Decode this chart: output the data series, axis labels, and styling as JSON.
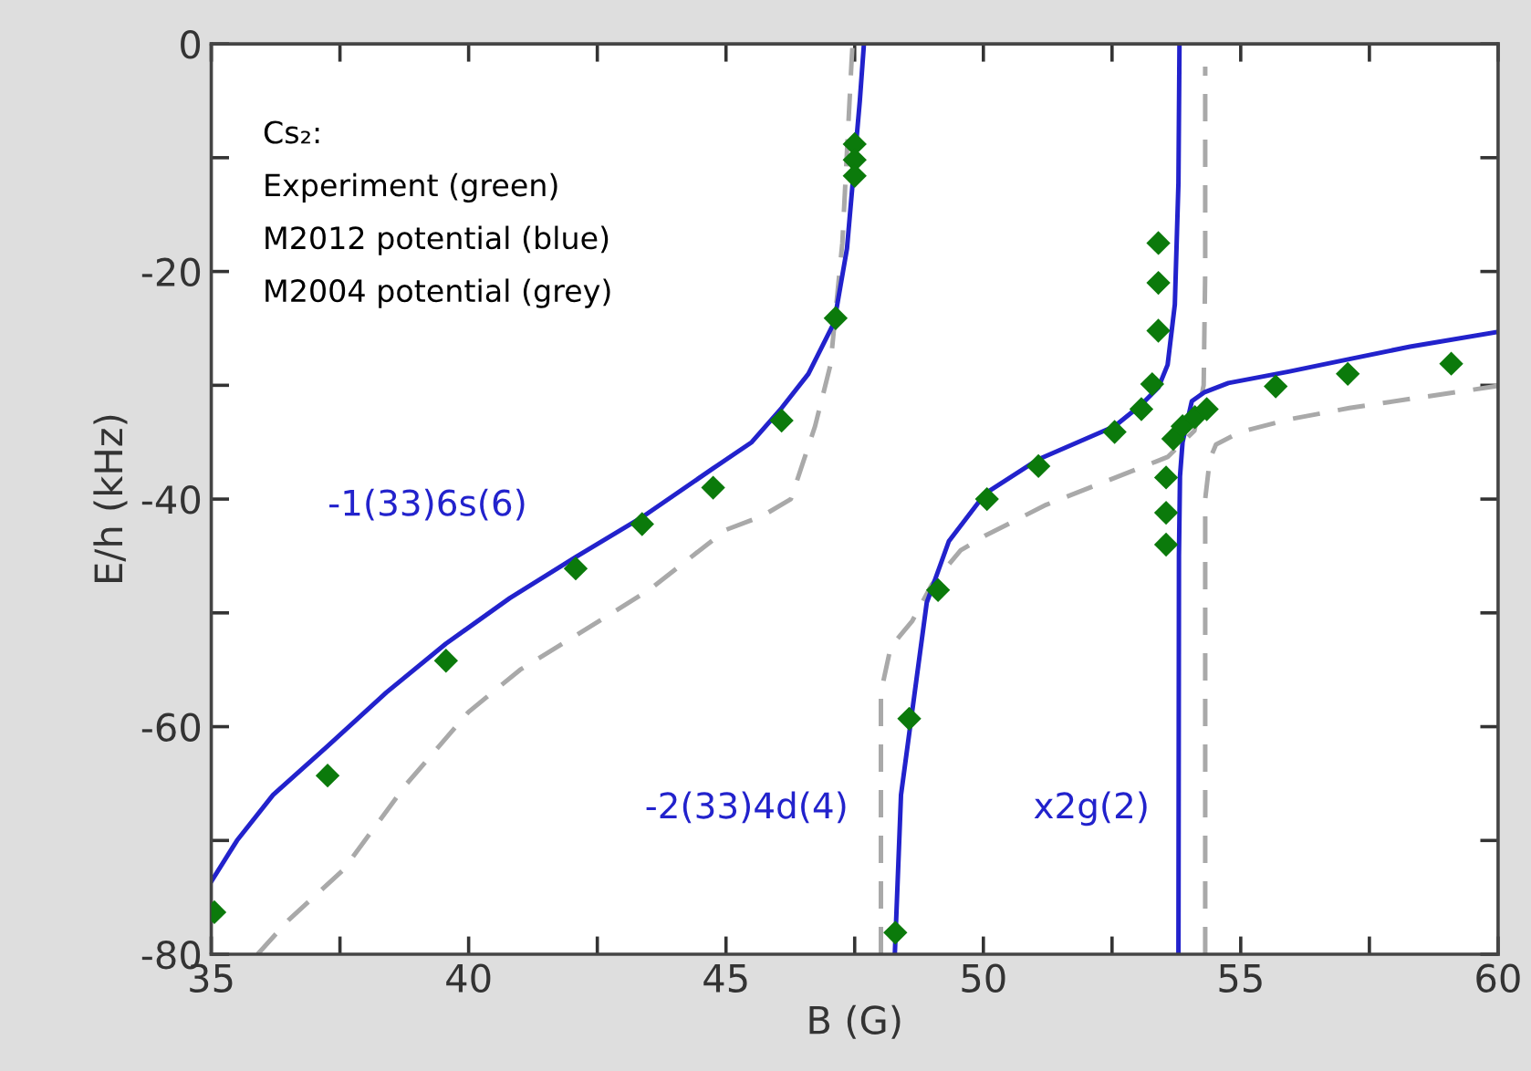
{
  "chart_data": {
    "type": "line",
    "xlabel": "B (G)",
    "ylabel": "E/h (kHz)",
    "xlim": [
      35,
      60
    ],
    "ylim": [
      -80,
      0
    ],
    "xticks": [
      35,
      {
        "value": 37.5,
        "label": null
      },
      40,
      {
        "value": 42.5,
        "label": null
      },
      45,
      {
        "value": 47.5,
        "label": null
      },
      50,
      {
        "value": 52.5,
        "label": null
      },
      55,
      {
        "value": 57.5,
        "label": null
      },
      60
    ],
    "yticks": [
      -80,
      {
        "value": -70,
        "label": null
      },
      -60,
      {
        "value": -50,
        "label": null
      },
      -40,
      {
        "value": -30,
        "label": null
      },
      -20,
      {
        "value": -10,
        "label": null
      },
      0
    ],
    "grid": false,
    "legend": false,
    "annotations": [
      "Cs₂:",
      "Experiment (green)",
      "M2012 potential (blue)",
      "M2004 potential (grey)",
      "-1(33)6s(6)",
      "-2(33)4d(4)",
      "x2g(2)"
    ],
    "series": [
      {
        "color": "#a9a9a9",
        "line_style": "dashed",
        "marker": "none",
        "x": [
          35.9,
          36.5,
          37.56,
          38.8,
          40.0,
          41.0,
          42.08,
          43.5,
          45.0,
          45.7,
          46.26,
          46.73,
          47.03,
          47.26,
          47.44,
          47.46
        ],
        "values": [
          -80,
          -77,
          -72.6,
          -65,
          -58.7,
          -55,
          -52.0,
          -48,
          -42.7,
          -41.5,
          -40,
          -33.6,
          -28.2,
          -17.5,
          -1.5,
          0
        ]
      },
      {
        "color": "#a9a9a9",
        "line_style": "dashed",
        "marker": "none",
        "x": [
          48.01,
          48.01,
          48.2,
          48.62,
          49.0,
          49.56,
          50.04,
          51.22,
          52.4,
          53.58,
          54.1,
          54.28,
          54.31,
          54.31
        ],
        "values": [
          -80,
          -57,
          -53,
          -50.7,
          -47.5,
          -44.5,
          -43.2,
          -40.5,
          -38.4,
          -36.3,
          -34,
          -30,
          -20,
          -2
        ]
      },
      {
        "color": "#a9a9a9",
        "line_style": "dashed",
        "marker": "none",
        "x": [
          54.31,
          54.31,
          54.4,
          54.52,
          54.99,
          55.93,
          57.11,
          58.29,
          59.94,
          60
        ],
        "values": [
          -80,
          -40,
          -36.5,
          -35.2,
          -34.1,
          -33.0,
          -32.0,
          -31.2,
          -30.1,
          -30.0
        ]
      },
      {
        "color": "#2222cc",
        "line_style": "solid",
        "marker": "none",
        "x": [
          35,
          35.5,
          36.2,
          37.26,
          38.4,
          39.56,
          40.8,
          42.08,
          43.4,
          44.75,
          45.5,
          46.08,
          46.6,
          47.1,
          47.35,
          47.6,
          47.68
        ],
        "values": [
          -73.6,
          -70,
          -66,
          -61.7,
          -57,
          -52.7,
          -48.7,
          -45.1,
          -41.5,
          -37.3,
          -35,
          -32,
          -29,
          -24.5,
          -18,
          -5,
          0
        ]
      },
      {
        "color": "#2222cc",
        "line_style": "solid",
        "marker": "none",
        "x": [
          48.28,
          48.4,
          48.9,
          49.33,
          50.04,
          51.07,
          52.55,
          53.07,
          53.4,
          53.58,
          53.72,
          53.79,
          53.81
        ],
        "values": [
          -80,
          -66,
          -49.1,
          -43.7,
          -39.5,
          -36.5,
          -33.6,
          -31.7,
          -30.2,
          -28.2,
          -22.9,
          -12.2,
          0
        ]
      },
      {
        "color": "#2222cc",
        "line_style": "solid",
        "marker": "none",
        "x": [
          53.79,
          53.8,
          53.82,
          53.87,
          54.05,
          54.3,
          54.76,
          55.93,
          57.11,
          58.29,
          60
        ],
        "values": [
          -80,
          -45,
          -38,
          -35,
          -31.4,
          -30.6,
          -29.8,
          -28.8,
          -27.7,
          -26.6,
          -25.3
        ]
      },
      {
        "type": "scatter",
        "color": "#0b7a0b",
        "marker": "diamond",
        "x": [
          35.06,
          37.26,
          39.56,
          42.08,
          43.37,
          44.75,
          46.08,
          47.13,
          47.5,
          47.5,
          47.5,
          48.29,
          48.56,
          49.12,
          50.07,
          51.07,
          52.55,
          53.07,
          53.28,
          53.4,
          53.4,
          53.4,
          53.55,
          53.55,
          53.55,
          53.69,
          53.87,
          54.11,
          54.34,
          55.68,
          57.08,
          59.09
        ],
        "values": [
          -76.3,
          -64.3,
          -54.2,
          -46.1,
          -42.2,
          -39.0,
          -33.1,
          -24.1,
          -8.8,
          -10.2,
          -11.6,
          -78.1,
          -59.3,
          -48.0,
          -40.0,
          -37.1,
          -34.1,
          -32.1,
          -29.9,
          -25.2,
          -21.0,
          -17.5,
          -38.1,
          -41.2,
          -44.0,
          -34.7,
          -33.6,
          -32.8,
          -32.1,
          -30.1,
          -29.0,
          -28.1
        ]
      }
    ]
  }
}
